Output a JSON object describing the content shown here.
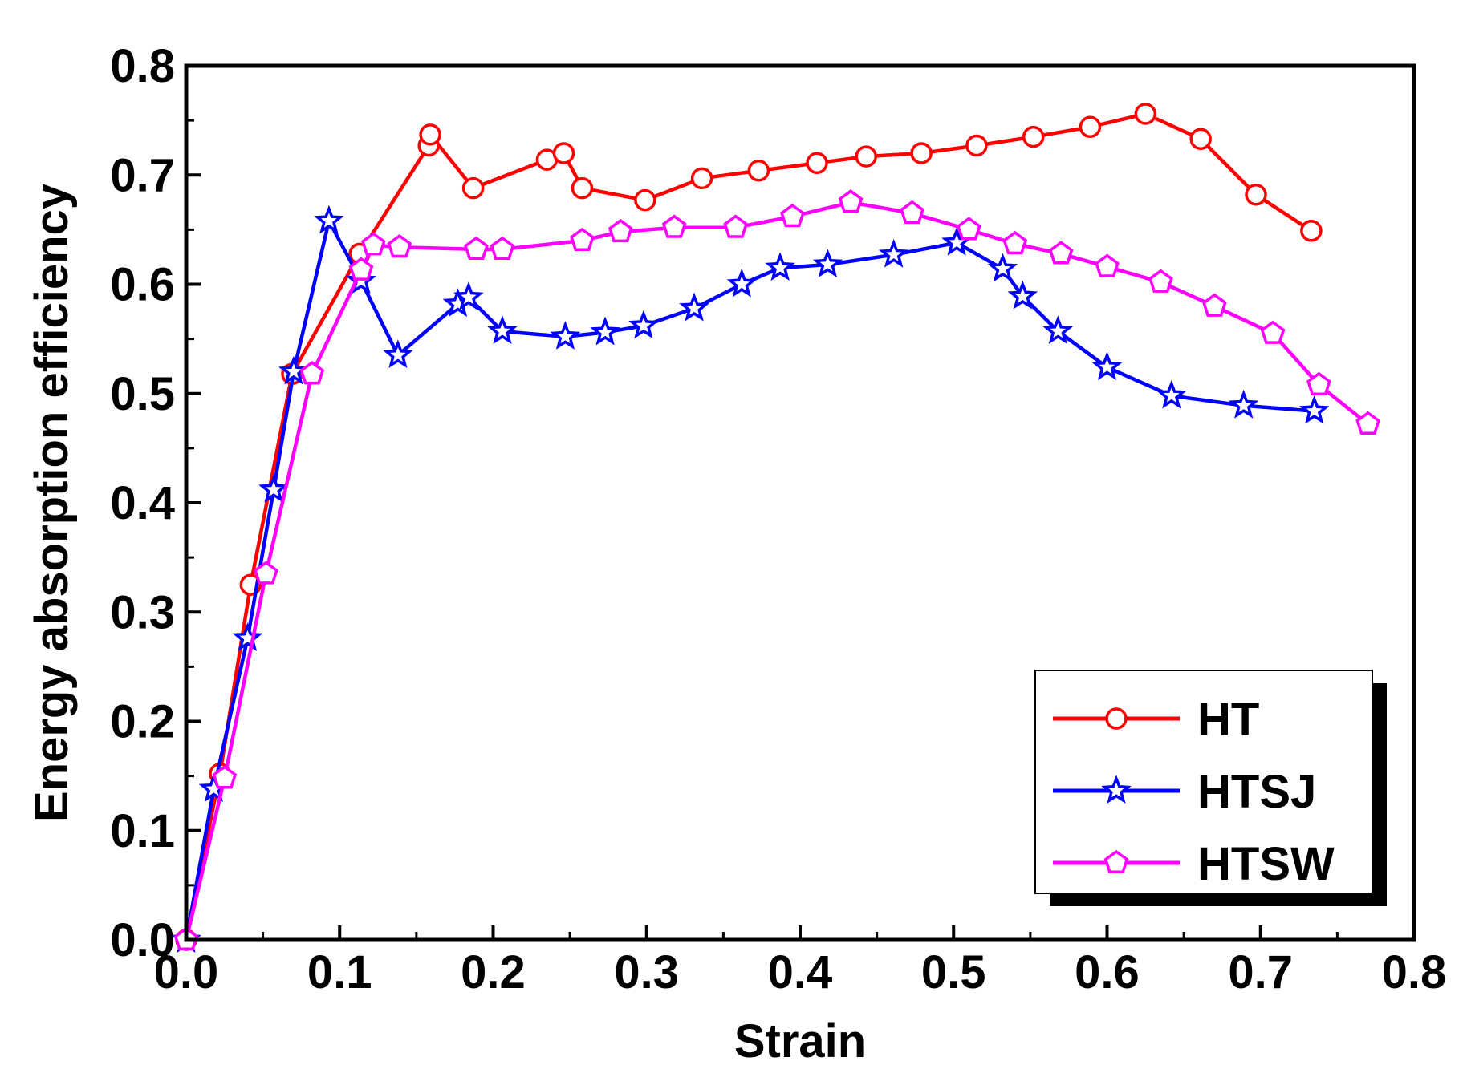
{
  "chart_data": {
    "type": "line",
    "title": "",
    "xlabel": "Strain",
    "ylabel": "Energy absorption efficiency",
    "xlim": [
      0.0,
      0.8
    ],
    "ylim": [
      0.0,
      0.8
    ],
    "xticks": [
      "0.0",
      "0.1",
      "0.2",
      "0.3",
      "0.4",
      "0.5",
      "0.6",
      "0.7",
      "0.8"
    ],
    "yticks": [
      "0.0",
      "0.1",
      "0.2",
      "0.3",
      "0.4",
      "0.5",
      "0.6",
      "0.7",
      "0.8"
    ],
    "grid": false,
    "legend_position": "bottom-right",
    "series": [
      {
        "name": "HT",
        "color": "#ff0000",
        "marker": "circle",
        "points": [
          [
            0.0,
            0.0
          ],
          [
            0.022,
            0.152
          ],
          [
            0.042,
            0.325
          ],
          [
            0.069,
            0.518
          ],
          [
            0.113,
            0.628
          ],
          [
            0.158,
            0.727
          ],
          [
            0.159,
            0.737
          ],
          [
            0.187,
            0.688
          ],
          [
            0.235,
            0.714
          ],
          [
            0.246,
            0.72
          ],
          [
            0.258,
            0.688
          ],
          [
            0.299,
            0.677
          ],
          [
            0.336,
            0.697
          ],
          [
            0.373,
            0.704
          ],
          [
            0.411,
            0.711
          ],
          [
            0.443,
            0.717
          ],
          [
            0.479,
            0.72
          ],
          [
            0.515,
            0.727
          ],
          [
            0.552,
            0.735
          ],
          [
            0.589,
            0.744
          ],
          [
            0.625,
            0.756
          ],
          [
            0.661,
            0.733
          ],
          [
            0.697,
            0.682
          ],
          [
            0.733,
            0.649
          ]
        ]
      },
      {
        "name": "HTSJ",
        "color": "#0000ff",
        "marker": "star",
        "points": [
          [
            0.0,
            0.0
          ],
          [
            0.018,
            0.138
          ],
          [
            0.04,
            0.276
          ],
          [
            0.057,
            0.412
          ],
          [
            0.07,
            0.52
          ],
          [
            0.093,
            0.658
          ],
          [
            0.114,
            0.603
          ],
          [
            0.138,
            0.535
          ],
          [
            0.177,
            0.582
          ],
          [
            0.184,
            0.588
          ],
          [
            0.206,
            0.557
          ],
          [
            0.247,
            0.552
          ],
          [
            0.273,
            0.556
          ],
          [
            0.298,
            0.562
          ],
          [
            0.331,
            0.578
          ],
          [
            0.362,
            0.6
          ],
          [
            0.387,
            0.615
          ],
          [
            0.418,
            0.618
          ],
          [
            0.461,
            0.627
          ],
          [
            0.502,
            0.638
          ],
          [
            0.532,
            0.614
          ],
          [
            0.545,
            0.589
          ],
          [
            0.568,
            0.557
          ],
          [
            0.6,
            0.524
          ],
          [
            0.642,
            0.498
          ],
          [
            0.689,
            0.489
          ],
          [
            0.735,
            0.484
          ]
        ]
      },
      {
        "name": "HTSW",
        "color": "#ff00ff",
        "marker": "pentagon",
        "points": [
          [
            0.0,
            0.0
          ],
          [
            0.025,
            0.148
          ],
          [
            0.052,
            0.335
          ],
          [
            0.082,
            0.518
          ],
          [
            0.114,
            0.613
          ],
          [
            0.122,
            0.636
          ],
          [
            0.139,
            0.634
          ],
          [
            0.189,
            0.632
          ],
          [
            0.206,
            0.632
          ],
          [
            0.258,
            0.64
          ],
          [
            0.283,
            0.648
          ],
          [
            0.318,
            0.652
          ],
          [
            0.358,
            0.652
          ],
          [
            0.395,
            0.662
          ],
          [
            0.433,
            0.675
          ],
          [
            0.473,
            0.665
          ],
          [
            0.51,
            0.65
          ],
          [
            0.54,
            0.637
          ],
          [
            0.57,
            0.628
          ],
          [
            0.6,
            0.616
          ],
          [
            0.635,
            0.602
          ],
          [
            0.67,
            0.58
          ],
          [
            0.708,
            0.555
          ],
          [
            0.738,
            0.508
          ],
          [
            0.77,
            0.472
          ]
        ]
      }
    ]
  }
}
